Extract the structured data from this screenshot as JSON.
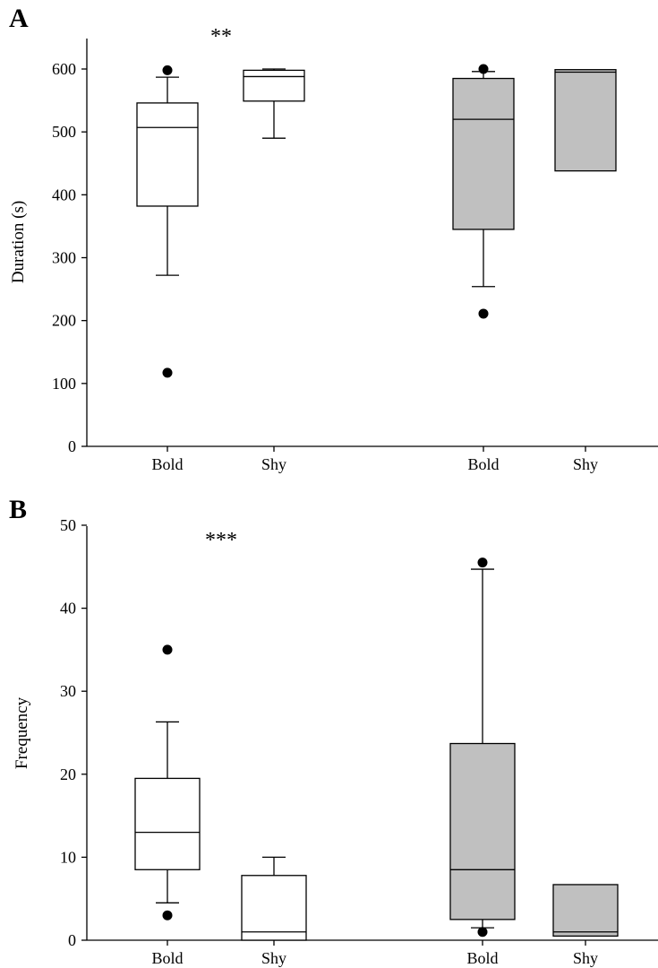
{
  "chart_data": [
    {
      "type": "box",
      "panel_label": "A",
      "ylabel": "Duration (s)",
      "ylim": [
        0,
        650
      ],
      "yticks": [
        0,
        100,
        200,
        300,
        400,
        500,
        600
      ],
      "significance": "**",
      "significance_over_category": 0,
      "fill_colors": [
        "#ffffff",
        "#ffffff",
        "#c0c0c0",
        "#c0c0c0"
      ],
      "categories": [
        "Bold",
        "Shy",
        "Bold",
        "Shy"
      ],
      "boxes": [
        {
          "whisker_low": 272,
          "q1": 382,
          "median": 507,
          "q3": 546,
          "whisker_high": 587,
          "outliers": [
            598,
            117
          ]
        },
        {
          "whisker_low": 490,
          "q1": 549,
          "median": 588,
          "q3": 598,
          "whisker_high": 600,
          "outliers": []
        },
        {
          "whisker_low": 254,
          "q1": 345,
          "median": 520,
          "q3": 585,
          "whisker_high": 596,
          "outliers": [
            600,
            211
          ]
        },
        {
          "whisker_low": 438,
          "q1": 438,
          "median": 595,
          "q3": 599,
          "whisker_high": 599,
          "outliers": []
        }
      ]
    },
    {
      "type": "box",
      "panel_label": "B",
      "ylabel": "Frequency",
      "ylim": [
        0,
        50
      ],
      "yticks": [
        0,
        10,
        20,
        30,
        40,
        50
      ],
      "significance": "***",
      "significance_over_category": 0,
      "fill_colors": [
        "#ffffff",
        "#ffffff",
        "#c0c0c0",
        "#c0c0c0"
      ],
      "categories": [
        "Bold",
        "Shy",
        "Bold",
        "Shy"
      ],
      "boxes": [
        {
          "whisker_low": 4.5,
          "q1": 8.5,
          "median": 13,
          "q3": 19.5,
          "whisker_high": 26.3,
          "outliers": [
            35,
            3
          ]
        },
        {
          "whisker_low": 0,
          "q1": 0,
          "median": 1,
          "q3": 7.8,
          "whisker_high": 10,
          "outliers": []
        },
        {
          "whisker_low": 1.5,
          "q1": 2.5,
          "median": 8.5,
          "q3": 23.7,
          "whisker_high": 44.7,
          "outliers": [
            45.5,
            1
          ]
        },
        {
          "whisker_low": 0.5,
          "q1": 0.5,
          "median": 1,
          "q3": 6.7,
          "whisker_high": 6.7,
          "outliers": []
        }
      ]
    }
  ]
}
